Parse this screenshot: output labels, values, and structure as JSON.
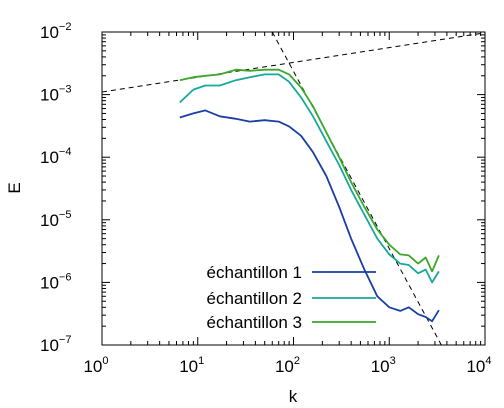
{
  "chart_data": {
    "type": "line",
    "xlabel": "k",
    "ylabel": "E",
    "x_scale": "log",
    "y_scale": "log",
    "xlim": [
      1,
      10000
    ],
    "ylim": [
      1e-07,
      0.01
    ],
    "x_ticks": [
      {
        "value": 1,
        "base": "10",
        "exp": "0"
      },
      {
        "value": 10,
        "base": "10",
        "exp": "1"
      },
      {
        "value": 100,
        "base": "10",
        "exp": "2"
      },
      {
        "value": 1000,
        "base": "10",
        "exp": "3"
      },
      {
        "value": 10000,
        "base": "10",
        "exp": "4"
      }
    ],
    "y_ticks": [
      {
        "value": 1e-07,
        "base": "10",
        "exp": "−7"
      },
      {
        "value": 1e-06,
        "base": "10",
        "exp": "−6"
      },
      {
        "value": 1e-05,
        "base": "10",
        "exp": "−5"
      },
      {
        "value": 0.0001,
        "base": "10",
        "exp": "−4"
      },
      {
        "value": 0.001,
        "base": "10",
        "exp": "−3"
      },
      {
        "value": 0.01,
        "base": "10",
        "exp": "−2"
      }
    ],
    "grid": false,
    "legend_position": "bottom-left",
    "series": [
      {
        "name": "échantillon 1",
        "color": "#1a3fa6",
        "x": [
          6.5,
          9,
          12,
          17,
          25,
          35,
          50,
          70,
          90,
          120,
          160,
          220,
          300,
          400,
          550,
          750,
          1000,
          1300,
          1600,
          2000,
          2400,
          2800,
          3300
        ],
        "y": [
          0.00043,
          0.0005,
          0.00056,
          0.00045,
          0.00041,
          0.00037,
          0.00039,
          0.00037,
          0.00031,
          0.00022,
          0.00012,
          5e-05,
          1.6e-05,
          5e-06,
          1.6e-06,
          6e-07,
          4e-07,
          3.5e-07,
          4e-07,
          3.1e-07,
          2.8e-07,
          2.4e-07,
          3.6e-07
        ]
      },
      {
        "name": "échantillon 2",
        "color": "#17a89a",
        "x": [
          6.5,
          9,
          12,
          17,
          25,
          35,
          50,
          70,
          90,
          120,
          160,
          220,
          300,
          400,
          550,
          750,
          1000,
          1300,
          1600,
          2000,
          2400,
          2800,
          3300
        ],
        "y": [
          0.00075,
          0.0012,
          0.0014,
          0.0014,
          0.0017,
          0.0019,
          0.0021,
          0.0021,
          0.0016,
          0.0009,
          0.00045,
          0.00018,
          7.5e-05,
          3e-05,
          1.2e-05,
          5e-06,
          2.8e-06,
          2e-06,
          1.9e-06,
          1.4e-06,
          1.6e-06,
          1e-06,
          1.5e-06
        ]
      },
      {
        "name": "échantillon 3",
        "color": "#3aa829",
        "x": [
          6.5,
          9,
          12,
          17,
          25,
          35,
          50,
          70,
          90,
          120,
          160,
          220,
          300,
          400,
          550,
          750,
          1000,
          1300,
          1600,
          2000,
          2400,
          2800,
          3300
        ],
        "y": [
          0.0017,
          0.0019,
          0.002,
          0.0021,
          0.0025,
          0.0024,
          0.0025,
          0.0025,
          0.0021,
          0.0013,
          0.00065,
          0.00025,
          0.0001,
          4e-05,
          1.6e-05,
          7e-06,
          4e-06,
          2.8e-06,
          2.7e-06,
          2e-06,
          2.5e-06,
          1.5e-06,
          2.7e-06
        ]
      }
    ],
    "reference_lines": [
      {
        "style": "dashed",
        "color": "#000000",
        "points": [
          [
            1,
            0.0011
          ],
          [
            10000,
            0.0097
          ]
        ]
      },
      {
        "style": "dashed",
        "color": "#000000",
        "points": [
          [
            60,
            0.01
          ],
          [
            3500,
            1e-07
          ]
        ]
      }
    ]
  }
}
